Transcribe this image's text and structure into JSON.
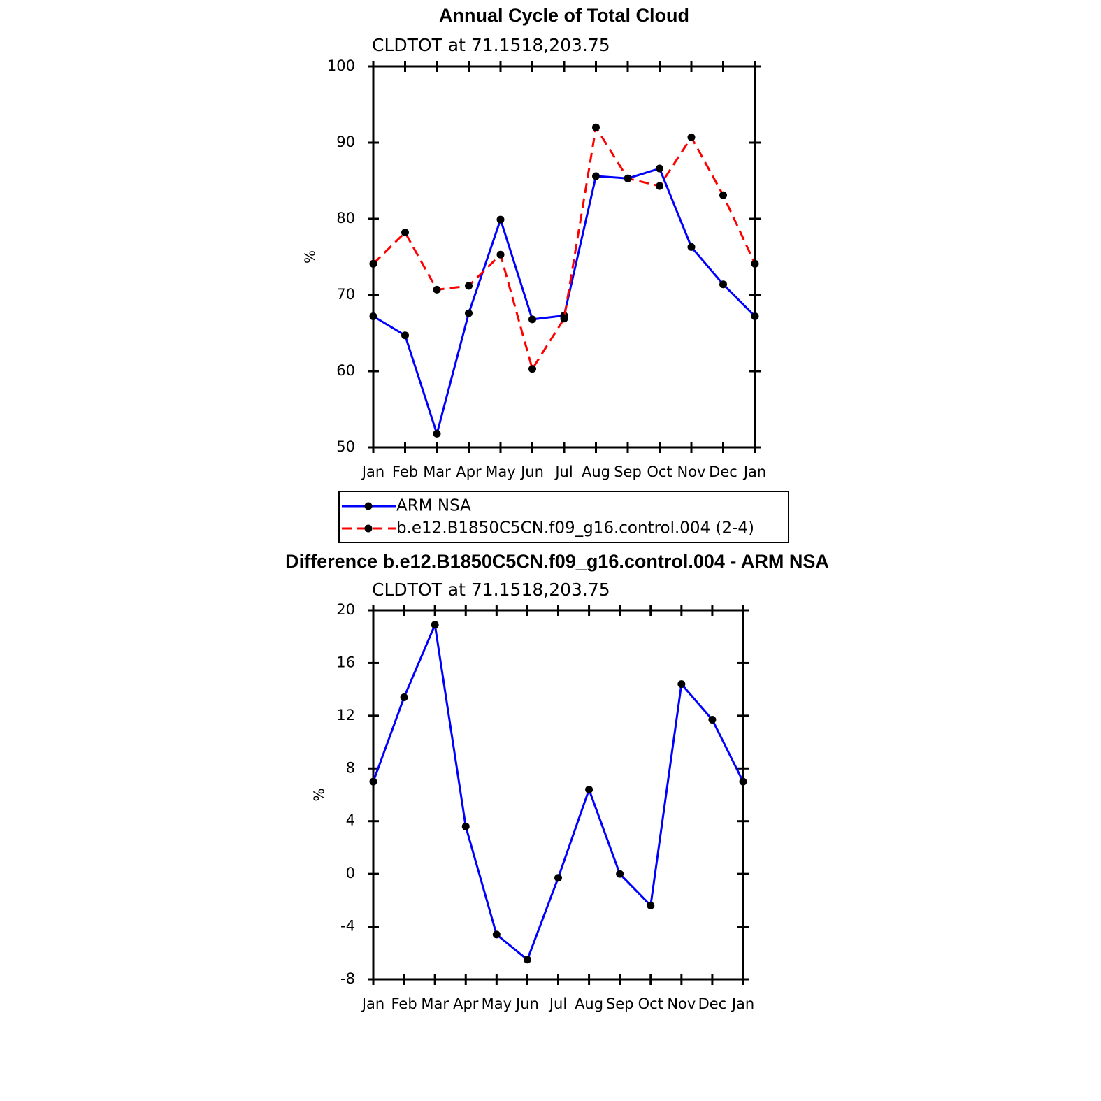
{
  "chart_data": [
    {
      "type": "line",
      "title": "Annual Cycle of Total Cloud",
      "subtitle": "CLDTOT at 71.1518,203.75",
      "y_label": "%",
      "categories": [
        "Jan",
        "Feb",
        "Mar",
        "Apr",
        "May",
        "Jun",
        "Jul",
        "Aug",
        "Sep",
        "Oct",
        "Nov",
        "Dec",
        "Jan"
      ],
      "series": [
        {
          "name": "ARM NSA",
          "color": "#0000ff",
          "line_style": "solid",
          "values": [
            67.2,
            64.7,
            51.8,
            67.6,
            79.9,
            66.8,
            67.3,
            85.6,
            85.3,
            86.6,
            76.3,
            71.4,
            67.2
          ]
        },
        {
          "name": "b.e12.B1850C5CN.f09_g16.control.004 (2-4)",
          "color": "#ff0000",
          "line_style": "dashed",
          "values": [
            74.1,
            78.2,
            70.7,
            71.2,
            75.3,
            60.3,
            66.9,
            92.0,
            85.3,
            84.3,
            90.7,
            83.1,
            74.1
          ]
        }
      ],
      "marker_color": "#000000",
      "ylim": [
        50,
        100
      ],
      "yticks": [
        50,
        60,
        70,
        80,
        90,
        100
      ]
    },
    {
      "type": "line",
      "title": "Difference b.e12.B1850C5CN.f09_g16.control.004 - ARM NSA",
      "subtitle": "CLDTOT at 71.1518,203.75",
      "y_label": "%",
      "categories": [
        "Jan",
        "Feb",
        "Mar",
        "Apr",
        "May",
        "Jun",
        "Jul",
        "Aug",
        "Sep",
        "Oct",
        "Nov",
        "Dec",
        "Jan"
      ],
      "values": [
        7.0,
        13.4,
        18.9,
        3.6,
        -4.6,
        -6.5,
        -0.3,
        6.4,
        0,
        -2.4,
        14.4,
        11.7,
        7.0
      ],
      "color": "#0000ff",
      "marker_color": "#000000",
      "ylim": [
        -8,
        20
      ],
      "yticks": [
        -8,
        -4,
        0,
        4,
        8,
        12,
        16,
        20
      ]
    }
  ]
}
